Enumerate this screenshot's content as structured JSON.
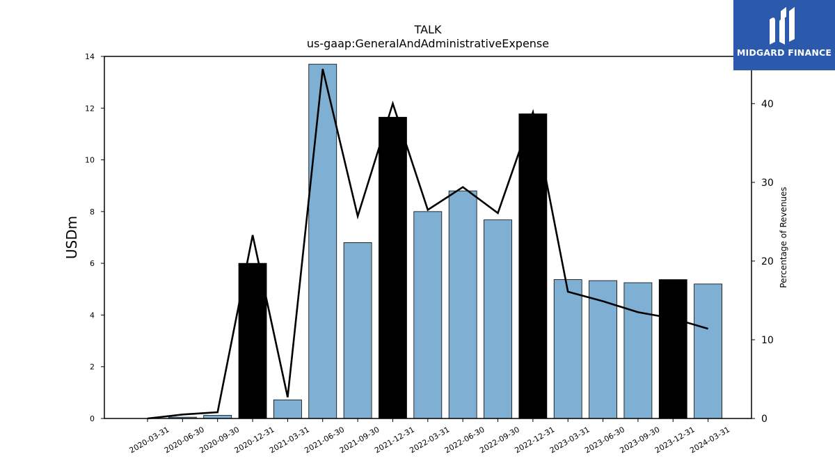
{
  "logo": {
    "text": "MIDGARD FINANCE",
    "background": "#2b5aad"
  },
  "chart_data": {
    "type": "bar",
    "title": "TALK",
    "subtitle": "us-gaap:GeneralAndAdministrativeExpense",
    "ylabel": "USDm",
    "y2label": "Percentage of Revenues",
    "ylim": [
      0,
      14
    ],
    "y2lim": [
      0,
      46
    ],
    "yticks": [
      0,
      2,
      4,
      6,
      8,
      10,
      12,
      14
    ],
    "y2ticks": [
      0,
      10,
      20,
      30,
      40
    ],
    "categories": [
      "2020-03-31",
      "2020-06-30",
      "2020-09-30",
      "2020-12-31",
      "2021-03-31",
      "2021-06-30",
      "2021-09-30",
      "2021-12-31",
      "2022-03-31",
      "2022-06-30",
      "2022-09-30",
      "2022-12-31",
      "2023-03-31",
      "2023-06-30",
      "2023-09-30",
      "2023-12-31",
      "2024-03-31"
    ],
    "values": [
      0.0,
      0.05,
      0.12,
      6.0,
      0.72,
      13.7,
      6.8,
      11.65,
      8.0,
      8.8,
      7.68,
      11.78,
      5.37,
      5.33,
      5.25,
      5.37,
      5.2
    ],
    "bar_colors": [
      "#7fafd2",
      "#7fafd2",
      "#7fafd2",
      "#000000",
      "#7fafd2",
      "#7fafd2",
      "#7fafd2",
      "#000000",
      "#7fafd2",
      "#7fafd2",
      "#7fafd2",
      "#000000",
      "#7fafd2",
      "#7fafd2",
      "#7fafd2",
      "#000000",
      "#7fafd2"
    ],
    "line_series": {
      "values": [
        0.0,
        0.5,
        0.8,
        23.3,
        2.7,
        44.4,
        25.7,
        40.0,
        26.5,
        29.4,
        26.1,
        38.9,
        16.1,
        14.9,
        13.5,
        12.7,
        11.4
      ],
      "color": "#000000"
    },
    "grid": false
  }
}
